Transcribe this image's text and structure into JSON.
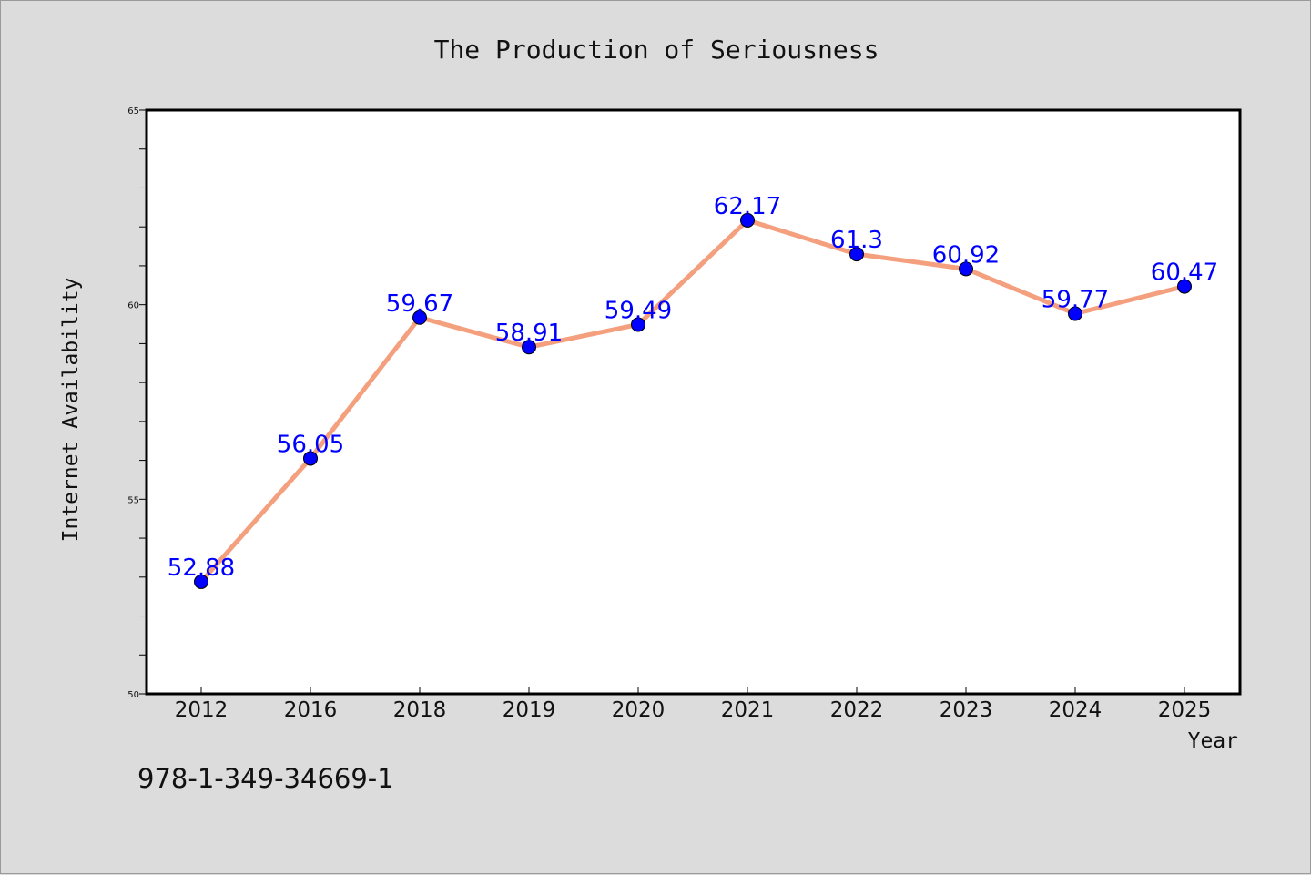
{
  "chart_data": {
    "type": "line",
    "title": "The Production of Seriousness",
    "xlabel": "Year",
    "ylabel": "Internet Availability",
    "categories": [
      "2012",
      "2016",
      "2018",
      "2019",
      "2020",
      "2021",
      "2022",
      "2023",
      "2024",
      "2025"
    ],
    "values": [
      52.88,
      56.05,
      59.67,
      58.91,
      59.49,
      62.17,
      61.3,
      60.92,
      59.77,
      60.47
    ],
    "data_labels": [
      "52.88",
      "56.05",
      "59.67",
      "58.91",
      "59.49",
      "62.17",
      "61.3",
      "60.92",
      "59.77",
      "60.47"
    ],
    "ylim": [
      50,
      65
    ],
    "y_ticks": [
      50,
      55,
      60,
      65
    ],
    "grid": false,
    "line_color": "#f4a07e",
    "marker_color": "#0000ff",
    "label_color": "#0000ff"
  },
  "footer": {
    "code": "978-1-349-34669-1"
  }
}
